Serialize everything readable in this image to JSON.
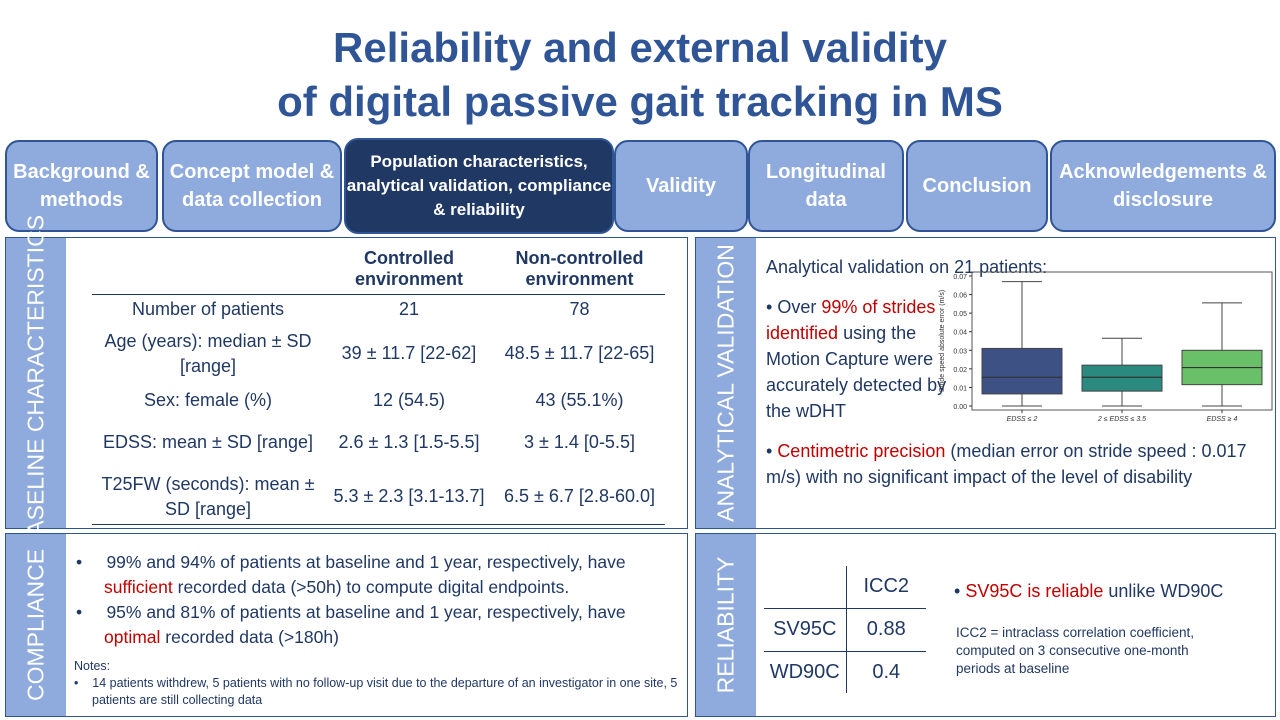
{
  "title": {
    "line1": "Reliability and external validity",
    "line2": "of digital passive gait tracking in MS"
  },
  "tabs": [
    {
      "label": "Background & methods"
    },
    {
      "label": "Concept model & data collection"
    },
    {
      "label": "Population characteristics, analytical validation, compliance & reliability",
      "active": true
    },
    {
      "label": "Validity"
    },
    {
      "label": "Longitudinal data"
    },
    {
      "label": "Conclusion"
    },
    {
      "label": "Acknowledgements & disclosure"
    }
  ],
  "baseline": {
    "side_label": "BASELINE CHARACTERISTICS",
    "headers": [
      "",
      "Controlled environment",
      "Non-controlled environment"
    ],
    "rows": [
      [
        "Number of patients",
        "21",
        "78"
      ],
      [
        "Age (years): median ± SD [range]",
        "39 ± 11.7 [22-62]",
        "48.5 ± 11.7 [22-65]"
      ],
      [
        "Sex: female (%)",
        "12 (54.5)",
        "43 (55.1%)"
      ],
      [
        "EDSS: mean ± SD [range]",
        "2.6 ± 1.3 [1.5-5.5]",
        "3 ± 1.4 [0-5.5]"
      ],
      [
        "T25FW (seconds): mean ± SD [range]",
        "5.3 ± 2.3 [3.1-13.7]",
        "6.5 ± 6.7 [2.8-60.0]"
      ]
    ]
  },
  "analytical": {
    "side_label": "ANALYTICAL VALIDATION",
    "heading": "Analytical validation on 21 patients:",
    "b1_pre": "Over ",
    "b1_red": "99% of strides identified",
    "b1_post": " using the Motion Capture were accurately detected by the wDHT",
    "b2_red": "Centimetric precision",
    "b2_post": " (median error on stride speed : 0.017 m/s) with no significant  impact of the level of disability"
  },
  "compliance": {
    "side_label": "COMPLIANCE",
    "b1_pre": "99% and 94% of patients at baseline and 1 year, respectively, have ",
    "b1_red": "sufficient",
    "b1_post": " recorded data (>50h) to compute digital endpoints.",
    "b2_pre": "95% and 81% of patients at baseline and 1 year, respectively, have ",
    "b2_red": "optimal",
    "b2_post": " recorded data (>180h)",
    "notes_label": "Notes:",
    "note": "14 patients withdrew, 5 patients with no follow-up visit due to the departure of an investigator in one site, 5 patients are still collecting data"
  },
  "reliability": {
    "side_label": "RELIABILITY",
    "header": "ICC2",
    "rows": [
      [
        "SV95C",
        "0.88"
      ],
      [
        "WD90C",
        "0.4"
      ]
    ],
    "bullet_red": "SV95C is reliable",
    "bullet_post": " unlike WD90C",
    "note": "ICC2 = intraclass correlation coefficient, computed on 3 consecutive one-month periods at baseline"
  },
  "chart_data": {
    "type": "box",
    "ylabel": "Stride speed absolute error (m/s)",
    "ylim": [
      0,
      0.07
    ],
    "yticks": [
      "0.00",
      "0.01",
      "0.02",
      "0.03",
      "0.04",
      "0.05",
      "0.06",
      "0.07"
    ],
    "categories": [
      "EDSS ≤ 2",
      "2 ≤ EDSS ≤ 3.5",
      "EDSS ≥ 4"
    ],
    "boxes": [
      {
        "min": 0,
        "q1": 0.0065,
        "median": 0.0155,
        "q3": 0.031,
        "max": 0.067,
        "color": "#3e5185"
      },
      {
        "min": 0,
        "q1": 0.008,
        "median": 0.0155,
        "q3": 0.022,
        "max": 0.0365,
        "color": "#2a8a7f"
      },
      {
        "min": 0,
        "q1": 0.0115,
        "median": 0.0207,
        "q3": 0.03,
        "max": 0.0555,
        "color": "#6abf69"
      }
    ]
  }
}
